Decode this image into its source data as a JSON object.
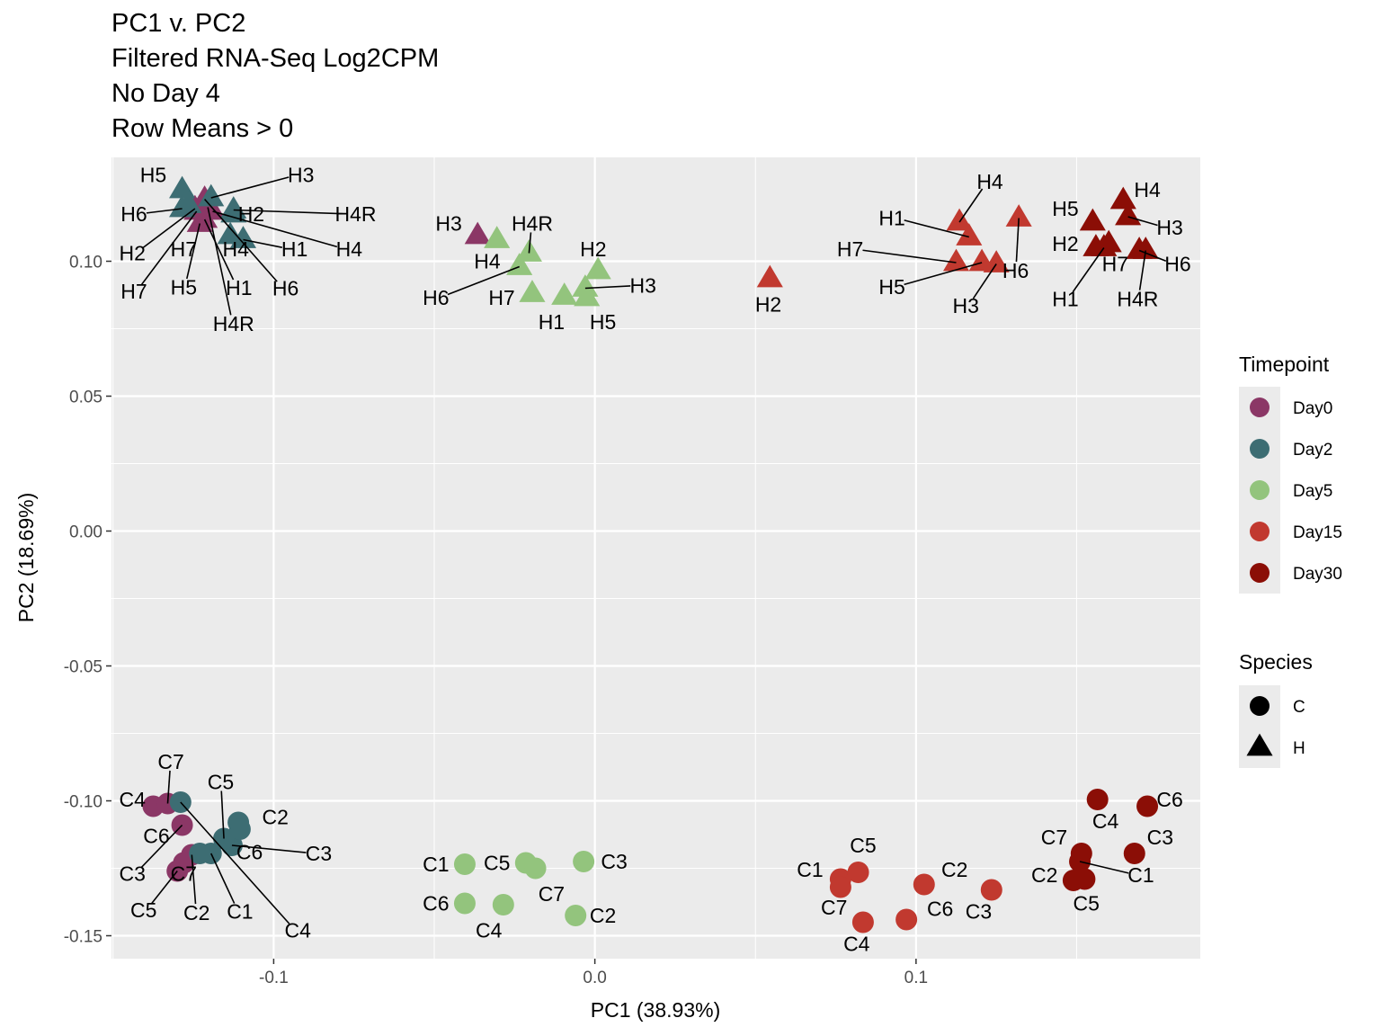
{
  "chart_data": {
    "type": "scatter",
    "title": [
      "PC1 v. PC2",
      "Filtered RNA-Seq Log2CPM",
      "No Day 4",
      "Row Means > 0"
    ],
    "xlabel": "PC1 (38.93%)",
    "ylabel": "PC2 (18.69%)",
    "xlim": [
      -0.1505,
      0.1885
    ],
    "ylim": [
      -0.1585,
      0.1385
    ],
    "xticks": [
      -0.1,
      0.0,
      0.1
    ],
    "xtick_labels": [
      "-0.1",
      "0.0",
      "0.1"
    ],
    "yticks": [
      0.1,
      0.05,
      0.0,
      -0.05,
      -0.1,
      -0.15
    ],
    "ytick_labels": [
      "0.10",
      "0.05",
      "0.00",
      "-0.05",
      "-0.10",
      "-0.15"
    ],
    "grid": true,
    "legend": {
      "placement": "right",
      "timepoint_title": "Timepoint",
      "timepoint_items": [
        {
          "label": "Day0",
          "color": "#8b3766"
        },
        {
          "label": "Day2",
          "color": "#3d6d73"
        },
        {
          "label": "Day5",
          "color": "#93c47d"
        },
        {
          "label": "Day15",
          "color": "#c1392f"
        },
        {
          "label": "Day30",
          "color": "#8b0e06"
        }
      ],
      "species_title": "Species",
      "species_items": [
        {
          "label": "C",
          "shape": "circle"
        },
        {
          "label": "H",
          "shape": "triangle"
        }
      ]
    },
    "points": [
      {
        "label": "H1",
        "species": "H",
        "tp": "Day0",
        "x": -0.1215,
        "y": 0.1155,
        "lx": -0.1108,
        "ly": 0.0902,
        "line": true
      },
      {
        "label": "H2",
        "species": "H",
        "tp": "Day0",
        "x": -0.1245,
        "y": 0.1195,
        "lx": -0.144,
        "ly": 0.103,
        "line": true
      },
      {
        "label": "H3",
        "species": "H",
        "tp": "Day0",
        "x": -0.0365,
        "y": 0.1095,
        "lx": -0.0455,
        "ly": 0.114,
        "line": false
      },
      {
        "label": "H4",
        "species": "H",
        "tp": "Day0",
        "x": -0.119,
        "y": 0.1185,
        "lx": -0.0765,
        "ly": 0.1045,
        "line": true
      },
      {
        "label": "H4R",
        "species": "H",
        "tp": "Day0",
        "x": -0.1205,
        "y": 0.12,
        "lx": -0.1125,
        "ly": 0.0768,
        "line": true
      },
      {
        "label": "H5",
        "species": "H",
        "tp": "Day0",
        "x": -0.123,
        "y": 0.114,
        "lx": -0.128,
        "ly": 0.0903,
        "line": true
      },
      {
        "label": "H6",
        "species": "H",
        "tp": "Day0",
        "x": -0.1215,
        "y": 0.123,
        "lx": -0.0963,
        "ly": 0.09,
        "line": true
      },
      {
        "label": "H7",
        "species": "H",
        "tp": "Day0",
        "x": -0.124,
        "y": 0.1185,
        "lx": -0.1435,
        "ly": 0.0888,
        "line": true
      },
      {
        "label": "C2",
        "species": "C",
        "tp": "Day0",
        "x": -0.1255,
        "y": -0.12,
        "lx": -0.124,
        "ly": -0.1415,
        "line": true
      },
      {
        "label": "C3",
        "species": "C",
        "tp": "Day0",
        "x": -0.1285,
        "y": -0.109,
        "lx": -0.144,
        "ly": -0.127,
        "line": true
      },
      {
        "label": "C4",
        "species": "C",
        "tp": "Day0",
        "x": -0.1375,
        "y": -0.102,
        "lx": -0.144,
        "ly": -0.0995,
        "line": false
      },
      {
        "label": "C5",
        "species": "C",
        "tp": "Day0",
        "x": -0.13,
        "y": -0.126,
        "lx": -0.1405,
        "ly": -0.1405,
        "line": true
      },
      {
        "label": "C6",
        "species": "C",
        "tp": "Day0",
        "x": -0.128,
        "y": -0.123,
        "lx": -0.1365,
        "ly": -0.113,
        "line": false
      },
      {
        "label": "C7",
        "species": "C",
        "tp": "Day0",
        "x": -0.133,
        "y": -0.101,
        "lx": -0.132,
        "ly": -0.0855,
        "line": true
      },
      {
        "label": "H1",
        "species": "H",
        "tp": "Day2",
        "x": -0.1095,
        "y": 0.108,
        "lx": -0.0935,
        "ly": 0.1045,
        "line": true
      },
      {
        "label": "H2",
        "species": "H",
        "tp": "Day2",
        "x": -0.1125,
        "y": 0.1175,
        "lx": -0.107,
        "ly": 0.1175,
        "line": false
      },
      {
        "label": "H3",
        "species": "H",
        "tp": "Day2",
        "x": -0.1195,
        "y": 0.1235,
        "lx": -0.0915,
        "ly": 0.132,
        "line": true
      },
      {
        "label": "H4",
        "species": "H",
        "tp": "Day2",
        "x": -0.1135,
        "y": 0.1095,
        "lx": -0.1118,
        "ly": 0.1045,
        "line": false
      },
      {
        "label": "H4R",
        "species": "H",
        "tp": "Day2",
        "x": -0.1125,
        "y": 0.119,
        "lx": -0.0745,
        "ly": 0.1175,
        "line": true
      },
      {
        "label": "H5",
        "species": "H",
        "tp": "Day2",
        "x": -0.1285,
        "y": 0.1265,
        "lx": -0.1375,
        "ly": 0.132,
        "line": false
      },
      {
        "label": "H6",
        "species": "H",
        "tp": "Day2",
        "x": -0.1285,
        "y": 0.1195,
        "lx": -0.1435,
        "ly": 0.1175,
        "line": true
      },
      {
        "label": "H7",
        "species": "H",
        "tp": "Day2",
        "x": -0.1265,
        "y": 0.121,
        "lx": -0.128,
        "ly": 0.1045,
        "line": false
      },
      {
        "label": "C1",
        "species": "C",
        "tp": "Day2",
        "x": -0.1195,
        "y": -0.1195,
        "lx": -0.1105,
        "ly": -0.141,
        "line": true
      },
      {
        "label": "C2",
        "species": "C",
        "tp": "Day2",
        "x": -0.111,
        "y": -0.108,
        "lx": -0.0995,
        "ly": -0.106,
        "line": false
      },
      {
        "label": "C3",
        "species": "C",
        "tp": "Day2",
        "x": -0.113,
        "y": -0.1165,
        "lx": -0.086,
        "ly": -0.1195,
        "line": true
      },
      {
        "label": "C4",
        "species": "C",
        "tp": "Day2",
        "x": -0.129,
        "y": -0.1005,
        "lx": -0.0925,
        "ly": -0.148,
        "line": true
      },
      {
        "label": "C5",
        "species": "C",
        "tp": "Day2",
        "x": -0.1155,
        "y": -0.114,
        "lx": -0.1165,
        "ly": -0.093,
        "line": true
      },
      {
        "label": "C6",
        "species": "C",
        "tp": "Day2",
        "x": -0.1105,
        "y": -0.1105,
        "lx": -0.1075,
        "ly": -0.119,
        "line": false
      },
      {
        "label": "C7",
        "species": "C",
        "tp": "Day2",
        "x": -0.123,
        "y": -0.1195,
        "lx": -0.128,
        "ly": -0.127,
        "line": false
      },
      {
        "label": "H1",
        "species": "H",
        "tp": "Day5",
        "x": -0.0095,
        "y": 0.087,
        "lx": -0.0135,
        "ly": 0.0775,
        "line": false
      },
      {
        "label": "H2",
        "species": "H",
        "tp": "Day5",
        "x": 0.001,
        "y": 0.0965,
        "lx": -0.0005,
        "ly": 0.1045,
        "line": false
      },
      {
        "label": "H3",
        "species": "H",
        "tp": "Day5",
        "x": -0.003,
        "y": 0.09,
        "lx": 0.015,
        "ly": 0.091,
        "line": true
      },
      {
        "label": "H4",
        "species": "H",
        "tp": "Day5",
        "x": -0.0305,
        "y": 0.108,
        "lx": -0.0335,
        "ly": 0.1,
        "line": false
      },
      {
        "label": "H4R",
        "species": "H",
        "tp": "Day5",
        "x": -0.0205,
        "y": 0.103,
        "lx": -0.0195,
        "ly": 0.114,
        "line": true
      },
      {
        "label": "H5",
        "species": "H",
        "tp": "Day5",
        "x": -0.0025,
        "y": 0.0865,
        "lx": 0.0025,
        "ly": 0.0775,
        "line": false
      },
      {
        "label": "H6",
        "species": "H",
        "tp": "Day5",
        "x": -0.0235,
        "y": 0.098,
        "lx": -0.0495,
        "ly": 0.0865,
        "line": true
      },
      {
        "label": "H7",
        "species": "H",
        "tp": "Day5",
        "x": -0.0195,
        "y": 0.088,
        "lx": -0.029,
        "ly": 0.0865,
        "line": false
      },
      {
        "label": "C1",
        "species": "C",
        "tp": "Day5",
        "x": -0.0405,
        "y": -0.1235,
        "lx": -0.0495,
        "ly": -0.1235,
        "line": false
      },
      {
        "label": "C2",
        "species": "C",
        "tp": "Day5",
        "x": -0.006,
        "y": -0.1425,
        "lx": 0.0025,
        "ly": -0.1425,
        "line": false
      },
      {
        "label": "C3",
        "species": "C",
        "tp": "Day5",
        "x": -0.0035,
        "y": -0.1225,
        "lx": 0.006,
        "ly": -0.1225,
        "line": false
      },
      {
        "label": "C4",
        "species": "C",
        "tp": "Day5",
        "x": -0.0285,
        "y": -0.1385,
        "lx": -0.033,
        "ly": -0.148,
        "line": false
      },
      {
        "label": "C5",
        "species": "C",
        "tp": "Day5",
        "x": -0.0215,
        "y": -0.123,
        "lx": -0.0305,
        "ly": -0.123,
        "line": false
      },
      {
        "label": "C6",
        "species": "C",
        "tp": "Day5",
        "x": -0.0405,
        "y": -0.138,
        "lx": -0.0495,
        "ly": -0.138,
        "line": false
      },
      {
        "label": "C7",
        "species": "C",
        "tp": "Day5",
        "x": -0.0185,
        "y": -0.125,
        "lx": -0.0135,
        "ly": -0.1345,
        "line": false
      },
      {
        "label": "H1",
        "species": "H",
        "tp": "Day15",
        "x": 0.1165,
        "y": 0.109,
        "lx": 0.0925,
        "ly": 0.116,
        "line": true
      },
      {
        "label": "H2",
        "species": "H",
        "tp": "Day15",
        "x": 0.0545,
        "y": 0.0935,
        "lx": 0.054,
        "ly": 0.084,
        "line": false
      },
      {
        "label": "H3",
        "species": "H",
        "tp": "Day15",
        "x": 0.125,
        "y": 0.099,
        "lx": 0.1155,
        "ly": 0.0835,
        "line": true
      },
      {
        "label": "H4",
        "species": "H",
        "tp": "Day15",
        "x": 0.1135,
        "y": 0.1145,
        "lx": 0.123,
        "ly": 0.1295,
        "line": true
      },
      {
        "label": "H5",
        "species": "H",
        "tp": "Day15",
        "x": 0.1205,
        "y": 0.0995,
        "lx": 0.0925,
        "ly": 0.0905,
        "line": true
      },
      {
        "label": "H6",
        "species": "H",
        "tp": "Day15",
        "x": 0.132,
        "y": 0.116,
        "lx": 0.131,
        "ly": 0.0965,
        "line": true
      },
      {
        "label": "H7",
        "species": "H",
        "tp": "Day15",
        "x": 0.1125,
        "y": 0.0995,
        "lx": 0.0795,
        "ly": 0.1045,
        "line": true
      },
      {
        "label": "C1",
        "species": "C",
        "tp": "Day15",
        "x": 0.0765,
        "y": -0.129,
        "lx": 0.067,
        "ly": -0.1255,
        "line": false
      },
      {
        "label": "C2",
        "species": "C",
        "tp": "Day15",
        "x": 0.1025,
        "y": -0.131,
        "lx": 0.112,
        "ly": -0.1255,
        "line": false
      },
      {
        "label": "C3",
        "species": "C",
        "tp": "Day15",
        "x": 0.1235,
        "y": -0.133,
        "lx": 0.1195,
        "ly": -0.141,
        "line": false
      },
      {
        "label": "C4",
        "species": "C",
        "tp": "Day15",
        "x": 0.0835,
        "y": -0.145,
        "lx": 0.0815,
        "ly": -0.153,
        "line": false
      },
      {
        "label": "C5",
        "species": "C",
        "tp": "Day15",
        "x": 0.082,
        "y": -0.1265,
        "lx": 0.0835,
        "ly": -0.1165,
        "line": false
      },
      {
        "label": "C6",
        "species": "C",
        "tp": "Day15",
        "x": 0.097,
        "y": -0.144,
        "lx": 0.1075,
        "ly": -0.14,
        "line": false
      },
      {
        "label": "C7",
        "species": "C",
        "tp": "Day15",
        "x": 0.0765,
        "y": -0.132,
        "lx": 0.0745,
        "ly": -0.1395,
        "line": false
      },
      {
        "label": "H1",
        "species": "H",
        "tp": "Day30",
        "x": 0.1585,
        "y": 0.105,
        "lx": 0.1465,
        "ly": 0.086,
        "line": true
      },
      {
        "label": "H2",
        "species": "H",
        "tp": "Day30",
        "x": 0.156,
        "y": 0.105,
        "lx": 0.1465,
        "ly": 0.1065,
        "line": false
      },
      {
        "label": "H3",
        "species": "H",
        "tp": "Day30",
        "x": 0.166,
        "y": 0.1165,
        "lx": 0.179,
        "ly": 0.1125,
        "line": true
      },
      {
        "label": "H4",
        "species": "H",
        "tp": "Day30",
        "x": 0.1645,
        "y": 0.1225,
        "lx": 0.172,
        "ly": 0.1265,
        "line": false
      },
      {
        "label": "H4R",
        "species": "H",
        "tp": "Day30",
        "x": 0.1715,
        "y": 0.104,
        "lx": 0.169,
        "ly": 0.086,
        "line": true
      },
      {
        "label": "H5",
        "species": "H",
        "tp": "Day30",
        "x": 0.155,
        "y": 0.1145,
        "lx": 0.1465,
        "ly": 0.1195,
        "line": false
      },
      {
        "label": "H6",
        "species": "H",
        "tp": "Day30",
        "x": 0.1695,
        "y": 0.104,
        "lx": 0.1815,
        "ly": 0.099,
        "line": true
      },
      {
        "label": "H7",
        "species": "H",
        "tp": "Day30",
        "x": 0.16,
        "y": 0.1065,
        "lx": 0.162,
        "ly": 0.099,
        "line": false
      },
      {
        "label": "C1",
        "species": "C",
        "tp": "Day30",
        "x": 0.151,
        "y": -0.1225,
        "lx": 0.17,
        "ly": -0.1275,
        "line": true
      },
      {
        "label": "C2",
        "species": "C",
        "tp": "Day30",
        "x": 0.149,
        "y": -0.1295,
        "lx": 0.14,
        "ly": -0.1275,
        "line": false
      },
      {
        "label": "C3",
        "species": "C",
        "tp": "Day30",
        "x": 0.168,
        "y": -0.1195,
        "lx": 0.176,
        "ly": -0.1135,
        "line": false
      },
      {
        "label": "C4",
        "species": "C",
        "tp": "Day30",
        "x": 0.1565,
        "y": -0.0995,
        "lx": 0.159,
        "ly": -0.1075,
        "line": false
      },
      {
        "label": "C5",
        "species": "C",
        "tp": "Day30",
        "x": 0.1525,
        "y": -0.129,
        "lx": 0.153,
        "ly": -0.138,
        "line": false
      },
      {
        "label": "C6",
        "species": "C",
        "tp": "Day30",
        "x": 0.172,
        "y": -0.102,
        "lx": 0.179,
        "ly": -0.0995,
        "line": false
      },
      {
        "label": "C7",
        "species": "C",
        "tp": "Day30",
        "x": 0.1515,
        "y": -0.1195,
        "lx": 0.143,
        "ly": -0.1135,
        "line": false
      }
    ]
  }
}
